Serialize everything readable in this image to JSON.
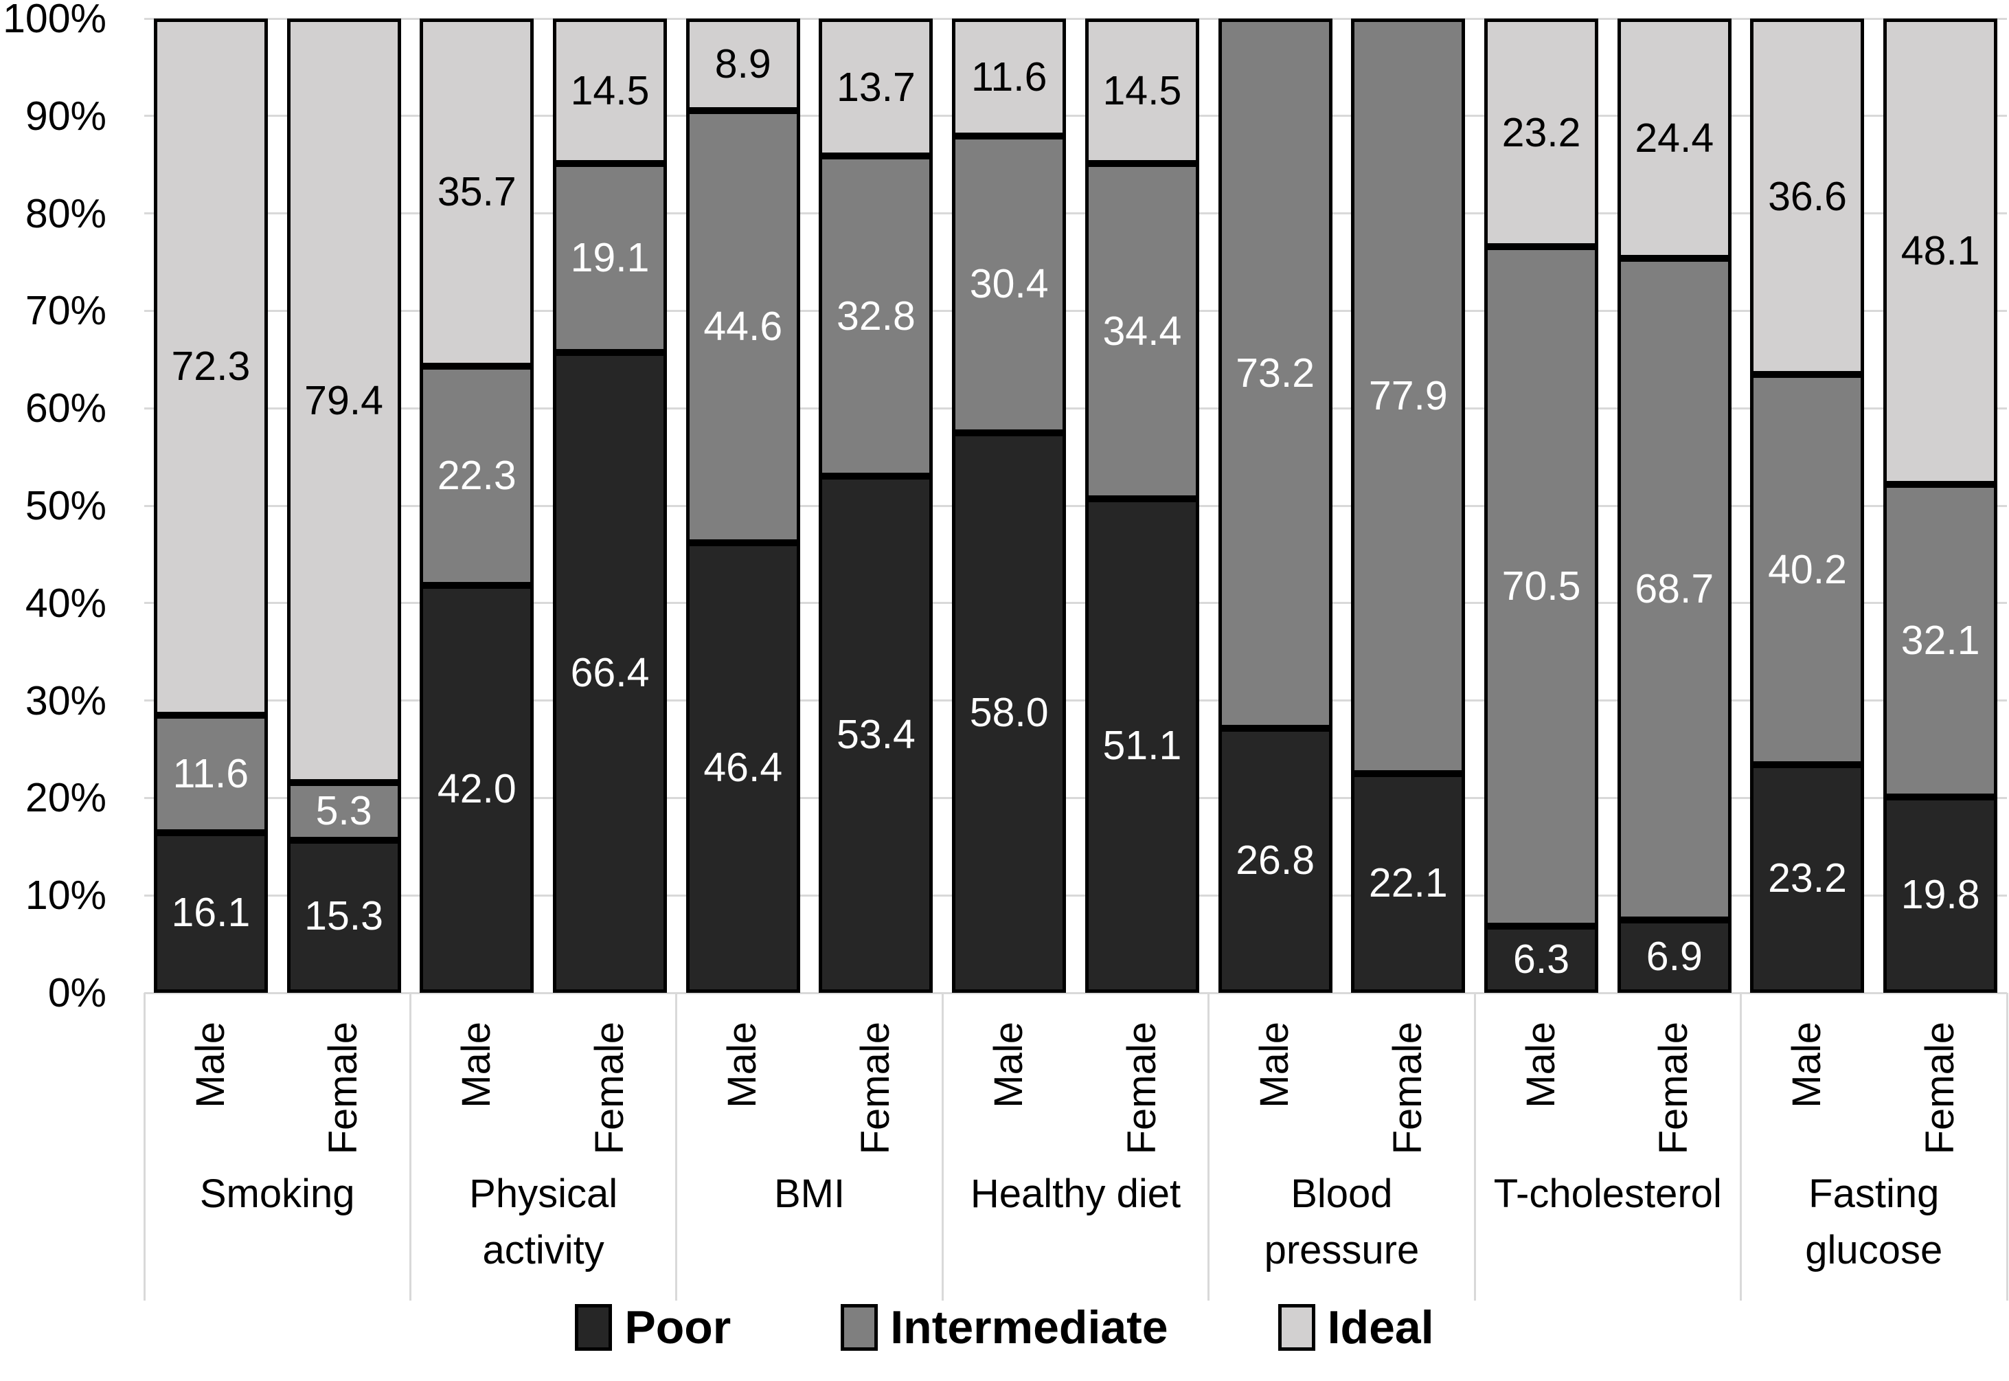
{
  "chart_data": {
    "type": "bar",
    "stacked": true,
    "orientation": "vertical",
    "title": "",
    "xlabel": "",
    "ylabel": "",
    "ylim": [
      0,
      100
    ],
    "grid": true,
    "legend_position": "bottom",
    "y_axis": {
      "ticks": [
        "0%",
        "10%",
        "20%",
        "30%",
        "40%",
        "50%",
        "60%",
        "70%",
        "80%",
        "90%",
        "100%"
      ]
    },
    "series": [
      {
        "name": "Poor",
        "color": "#262626",
        "label_color": "#ffffff"
      },
      {
        "name": "Intermediate",
        "color": "#7f7f7f",
        "label_color": "#ffffff"
      },
      {
        "name": "Ideal",
        "color": "#d2d0d0",
        "label_color": "#000000"
      }
    ],
    "subcategories": [
      "Male",
      "Female"
    ],
    "groups": [
      {
        "category": "Smoking",
        "bars": [
          {
            "sex": "Male",
            "values": [
              16.1,
              11.6,
              72.3
            ]
          },
          {
            "sex": "Female",
            "values": [
              15.3,
              5.3,
              79.4
            ]
          }
        ]
      },
      {
        "category": "Physical activity",
        "bars": [
          {
            "sex": "Male",
            "values": [
              42.0,
              22.3,
              35.7
            ]
          },
          {
            "sex": "Female",
            "values": [
              66.4,
              19.1,
              14.5
            ]
          }
        ]
      },
      {
        "category": "BMI",
        "bars": [
          {
            "sex": "Male",
            "values": [
              46.4,
              44.6,
              8.9
            ]
          },
          {
            "sex": "Female",
            "values": [
              53.4,
              32.8,
              13.7
            ]
          }
        ]
      },
      {
        "category": "Healthy diet",
        "bars": [
          {
            "sex": "Male",
            "values": [
              58.0,
              30.4,
              11.6
            ]
          },
          {
            "sex": "Female",
            "values": [
              51.1,
              34.4,
              14.5
            ]
          }
        ]
      },
      {
        "category": "Blood pressure",
        "bars": [
          {
            "sex": "Male",
            "values": [
              26.8,
              73.2,
              null
            ]
          },
          {
            "sex": "Female",
            "values": [
              22.1,
              77.9,
              null
            ]
          }
        ]
      },
      {
        "category": "T-cholesterol",
        "bars": [
          {
            "sex": "Male",
            "values": [
              6.3,
              70.5,
              23.2
            ]
          },
          {
            "sex": "Female",
            "values": [
              6.9,
              68.7,
              24.4
            ]
          }
        ]
      },
      {
        "category": "Fasting glucose",
        "bars": [
          {
            "sex": "Male",
            "values": [
              23.2,
              40.2,
              36.6
            ]
          },
          {
            "sex": "Female",
            "values": [
              19.8,
              32.1,
              48.1
            ]
          }
        ]
      }
    ],
    "legend": [
      {
        "label": "Poor"
      },
      {
        "label": "Intermediate"
      },
      {
        "label": "Ideal"
      }
    ],
    "style": {
      "gridline_color": "#d9d9d9",
      "bar_border_color": "#000000",
      "background": "#ffffff"
    }
  }
}
